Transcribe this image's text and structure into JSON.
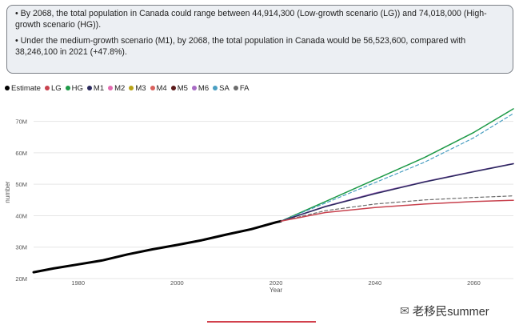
{
  "notes": {
    "bullet1": "• By 2068, the total population in Canada could range between 44,914,300 (Low-growth scenario (LG)) and 74,018,000 (High-growth scenario (HG)).",
    "bullet2": "• Under the medium-growth scenario (M1), by 2068, the total population in Canada would be 56,523,600, compared with 38,246,100 in 2021 (+47.8%)."
  },
  "legend": [
    {
      "label": "Estimate",
      "color": "#000000"
    },
    {
      "label": "LG",
      "color": "#c8424e"
    },
    {
      "label": "HG",
      "color": "#1e9a48"
    },
    {
      "label": "M1",
      "color": "#2b2a5e"
    },
    {
      "label": "M2",
      "color": "#e36bb0"
    },
    {
      "label": "M3",
      "color": "#b8a316"
    },
    {
      "label": "M4",
      "color": "#d9625e"
    },
    {
      "label": "M5",
      "color": "#5c1a1a"
    },
    {
      "label": "M6",
      "color": "#a86bc4"
    },
    {
      "label": "SA",
      "color": "#4a9fc2"
    },
    {
      "label": "FA",
      "color": "#6c6c6c"
    }
  ],
  "watermark": {
    "icon": "wechat-icon",
    "text": "老移民summer"
  },
  "chart_data": {
    "type": "line",
    "xlabel": "Year",
    "ylabel": "number",
    "xlim": [
      1971,
      2068
    ],
    "ylim": [
      20000000,
      75000000
    ],
    "x_ticks": [
      1980,
      2000,
      2020,
      2040,
      2060
    ],
    "y_ticks": [
      {
        "value": 20000000,
        "label": "20M"
      },
      {
        "value": 30000000,
        "label": "30M"
      },
      {
        "value": 40000000,
        "label": "40M"
      },
      {
        "value": 50000000,
        "label": "50M"
      },
      {
        "value": 60000000,
        "label": "60M"
      },
      {
        "value": 70000000,
        "label": "70M"
      }
    ],
    "grid": "horizontal",
    "legend_position": "top-left",
    "series": [
      {
        "name": "Estimate",
        "color": "#000000",
        "width": 3,
        "dash": "",
        "x": [
          1971,
          1975,
          1980,
          1985,
          1990,
          1995,
          2000,
          2005,
          2010,
          2015,
          2020,
          2021
        ],
        "y": [
          22000000,
          23200000,
          24500000,
          25800000,
          27700000,
          29300000,
          30700000,
          32200000,
          34000000,
          35700000,
          37900000,
          38246100
        ]
      },
      {
        "name": "HG",
        "color": "#1e9a48",
        "width": 1.5,
        "dash": "",
        "x": [
          2021,
          2030,
          2040,
          2050,
          2060,
          2068
        ],
        "y": [
          38246100,
          44500000,
          51500000,
          58500000,
          66500000,
          74018000
        ]
      },
      {
        "name": "SA",
        "color": "#4a9fc2",
        "width": 1.2,
        "dash": "4,3",
        "x": [
          2021,
          2030,
          2040,
          2050,
          2060,
          2068
        ],
        "y": [
          38246100,
          44000000,
          50500000,
          57000000,
          64800000,
          72500000
        ]
      },
      {
        "name": "M6",
        "color": "#a86bc4",
        "width": 1.5,
        "dash": "",
        "x": [
          2021,
          2030,
          2040,
          2050,
          2060,
          2068
        ],
        "y": [
          38246100,
          43000000,
          47200000,
          50800000,
          54100000,
          56600000
        ]
      },
      {
        "name": "M1",
        "color": "#2b2a5e",
        "width": 1.5,
        "dash": "",
        "x": [
          2021,
          2030,
          2040,
          2050,
          2060,
          2068
        ],
        "y": [
          38246100,
          42900000,
          47000000,
          50700000,
          54000000,
          56523600
        ]
      },
      {
        "name": "FA",
        "color": "#6c6c6c",
        "width": 1.2,
        "dash": "4,3",
        "x": [
          2021,
          2030,
          2040,
          2050,
          2060,
          2068
        ],
        "y": [
          38246100,
          41600000,
          43700000,
          45000000,
          45800000,
          46300000
        ]
      },
      {
        "name": "LG",
        "color": "#c8424e",
        "width": 1.5,
        "dash": "",
        "x": [
          2021,
          2030,
          2040,
          2050,
          2060,
          2068
        ],
        "y": [
          38246100,
          41000000,
          42600000,
          43700000,
          44500000,
          44914300
        ]
      }
    ]
  }
}
